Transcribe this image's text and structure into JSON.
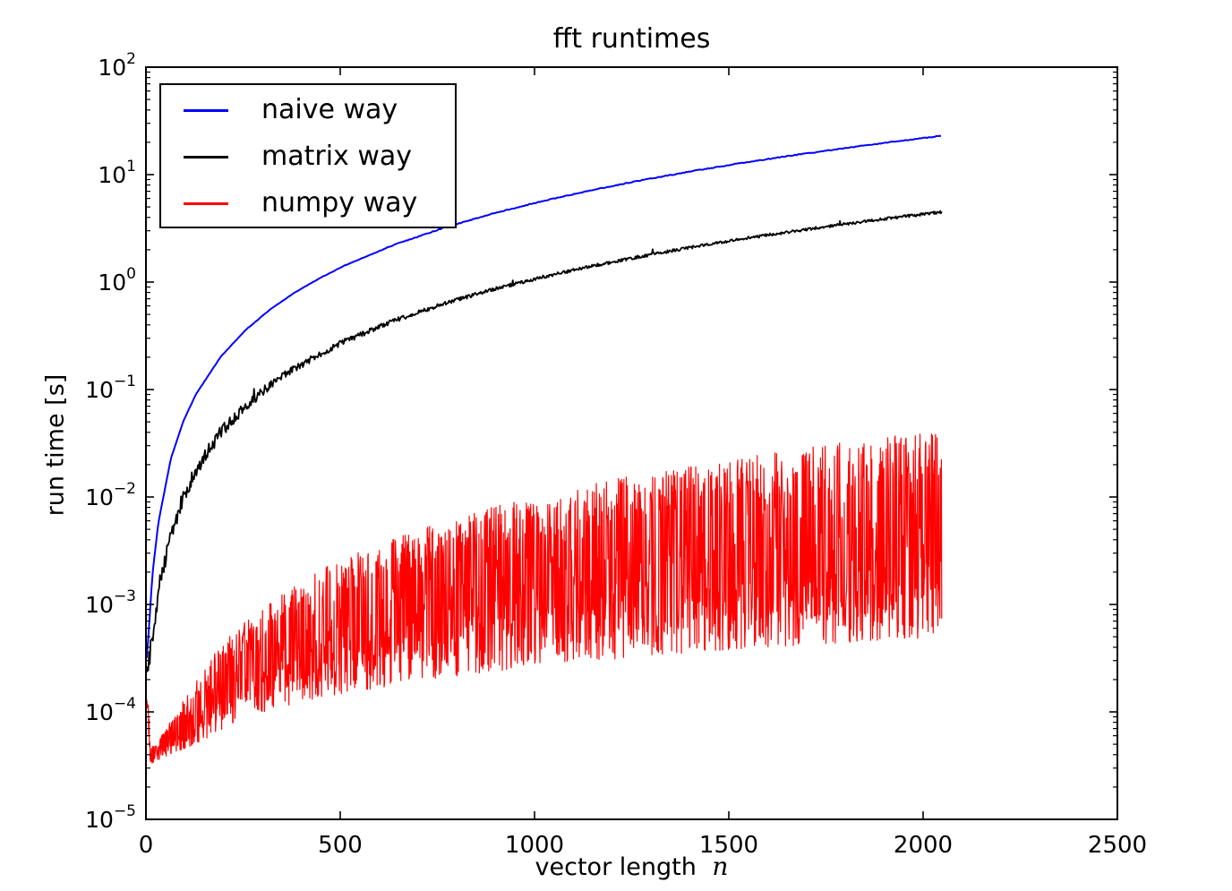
{
  "figure": {
    "background": "#ffffff"
  },
  "chart_data": {
    "type": "line",
    "title": "fft runtimes",
    "xlabel": "vector length n",
    "xlabel_prefix": "vector length",
    "xlabel_var": "n",
    "ylabel": "run time [s]",
    "grid": false,
    "x_axis": {
      "scale": "linear",
      "min": 0,
      "max": 2500,
      "ticks": [
        0,
        500,
        1000,
        1500,
        2000,
        2500
      ]
    },
    "y_axis": {
      "scale": "log",
      "min": 1e-05,
      "max": 100,
      "tick_exponents": [
        -5,
        -4,
        -3,
        -2,
        -1,
        0,
        1,
        2
      ],
      "tick_labels": [
        "10^-5",
        "10^-4",
        "10^-3",
        "10^-2",
        "10^-1",
        "10^0",
        "10^1",
        "10^2"
      ],
      "minor_ticks_mantissas": [
        2,
        3,
        4,
        5,
        6,
        7,
        8,
        9
      ]
    },
    "legend": {
      "position": "upper-left",
      "border": true
    },
    "n_range": [
      2,
      2048
    ],
    "series": [
      {
        "name": "naive way",
        "color": "#0000ff",
        "style": "smooth-line",
        "n_step": 4,
        "noise_sigma_log": 0.004,
        "samples": [
          [
            2,
            0.00032
          ],
          [
            8,
            0.0006
          ],
          [
            16,
            0.0018
          ],
          [
            32,
            0.0058
          ],
          [
            64,
            0.0226
          ],
          [
            96,
            0.0505
          ],
          [
            128,
            0.0895
          ],
          [
            192,
            0.201
          ],
          [
            256,
            0.357
          ],
          [
            320,
            0.558
          ],
          [
            384,
            0.804
          ],
          [
            448,
            1.09
          ],
          [
            512,
            1.43
          ],
          [
            640,
            2.23
          ],
          [
            768,
            3.21
          ],
          [
            896,
            4.38
          ],
          [
            1024,
            5.72
          ],
          [
            1152,
            7.23
          ],
          [
            1280,
            8.93
          ],
          [
            1408,
            10.8
          ],
          [
            1536,
            12.9
          ],
          [
            1664,
            15.1
          ],
          [
            1792,
            17.5
          ],
          [
            1920,
            20.1
          ],
          [
            2048,
            23.0
          ]
        ]
      },
      {
        "name": "matrix way",
        "color": "#000000",
        "style": "noisy-line",
        "n_step": 2,
        "noise_sigma_log_base": 0.013,
        "noise_sigma_log_extra": 0.095,
        "noise_decay_n": 260,
        "samples": [
          [
            2,
            0.00023
          ],
          [
            8,
            0.00029
          ],
          [
            16,
            0.00049
          ],
          [
            32,
            0.0013
          ],
          [
            64,
            0.0046
          ],
          [
            96,
            0.0101
          ],
          [
            128,
            0.0177
          ],
          [
            192,
            0.0397
          ],
          [
            256,
            0.0703
          ],
          [
            320,
            0.11
          ],
          [
            384,
            0.158
          ],
          [
            448,
            0.215
          ],
          [
            512,
            0.281
          ],
          [
            640,
            0.439
          ],
          [
            768,
            0.632
          ],
          [
            896,
            0.859
          ],
          [
            1024,
            1.12
          ],
          [
            1152,
            1.42
          ],
          [
            1280,
            1.75
          ],
          [
            1408,
            2.12
          ],
          [
            1536,
            2.53
          ],
          [
            1664,
            2.96
          ],
          [
            1792,
            3.44
          ],
          [
            1920,
            3.95
          ],
          [
            2048,
            4.5
          ]
        ]
      },
      {
        "name": "numpy way",
        "color": "#ff0000",
        "style": "spiky-band",
        "n_step": 1,
        "envelope_low": [
          [
            2,
            3.2e-05
          ],
          [
            12,
            3.2e-05
          ],
          [
            48,
            3.8e-05
          ],
          [
            96,
            4.4e-05
          ],
          [
            128,
            5e-05
          ],
          [
            256,
            9e-05
          ],
          [
            384,
            0.00012
          ],
          [
            512,
            0.00015
          ],
          [
            768,
            0.00021
          ],
          [
            1024,
            0.00027
          ],
          [
            1280,
            0.00033
          ],
          [
            1536,
            0.00039
          ],
          [
            1792,
            0.00044
          ],
          [
            2048,
            0.0005
          ]
        ],
        "envelope_high": [
          [
            2,
            0.00013
          ],
          [
            6,
            0.00012
          ],
          [
            12,
            4.6e-05
          ],
          [
            24,
            5e-05
          ],
          [
            48,
            6.6e-05
          ],
          [
            96,
            0.00013
          ],
          [
            128,
            0.00019
          ],
          [
            192,
            0.00042
          ],
          [
            256,
            0.0007
          ],
          [
            320,
            0.00105
          ],
          [
            384,
            0.0015
          ],
          [
            448,
            0.0021
          ],
          [
            512,
            0.0027
          ],
          [
            640,
            0.0042
          ],
          [
            768,
            0.006
          ],
          [
            896,
            0.0081
          ],
          [
            1024,
            0.0106
          ],
          [
            1152,
            0.0134
          ],
          [
            1280,
            0.0165
          ],
          [
            1408,
            0.02
          ],
          [
            1536,
            0.024
          ],
          [
            1664,
            0.028
          ],
          [
            1792,
            0.032
          ],
          [
            1920,
            0.037
          ],
          [
            2048,
            0.042
          ]
        ]
      }
    ]
  }
}
